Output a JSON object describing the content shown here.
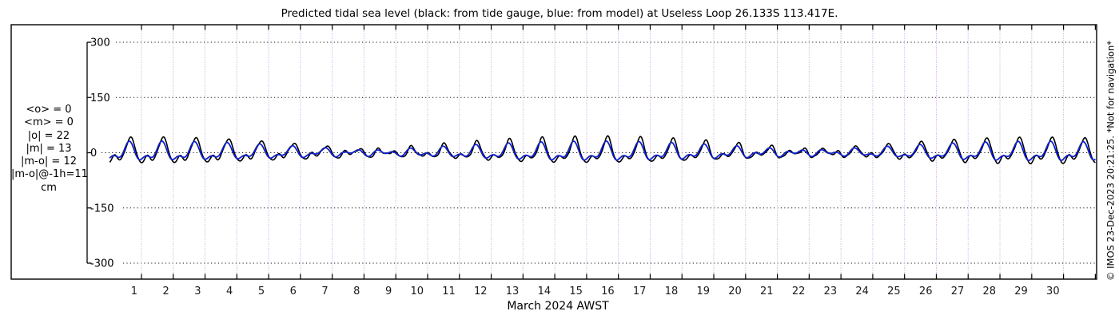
{
  "copyright": "© IMOS 23-Dec-2023 20:21:25. *Not for navigation*",
  "stats": {
    "lines": [
      "<o> = 0",
      "<m> = 0",
      "|o| = 22",
      "|m| = 13",
      "|m-o| = 12",
      "|m-o|@-1h=11",
      "cm"
    ]
  },
  "chart_data": {
    "type": "line",
    "title": "Predicted tidal sea level (black: from tide gauge, blue: from model) at Useless Loop 26.133S 113.417E.",
    "xlabel": "March 2024 AWST",
    "ylabel": "cm",
    "ylim": [
      -300,
      300
    ],
    "xlim_days": [
      0,
      31
    ],
    "grid": true,
    "y_ticks": [
      {
        "value": 300,
        "label": "300"
      },
      {
        "value": 150,
        "label": "150"
      },
      {
        "value": 0,
        "label": "0"
      },
      {
        "value": -150,
        "label": "-150"
      },
      {
        "value": -300,
        "label": "-300"
      }
    ],
    "x_tick_labels": [
      "1",
      "2",
      "3",
      "4",
      "5",
      "6",
      "7",
      "8",
      "9",
      "10",
      "11",
      "12",
      "13",
      "14",
      "15",
      "16",
      "17",
      "18",
      "19",
      "20",
      "21",
      "22",
      "23",
      "24",
      "25",
      "26",
      "27",
      "28",
      "29",
      "30"
    ],
    "colors": {
      "observed": "#000000",
      "model": "#1122cc",
      "h_grid": "#111111",
      "v_grid_pink": "#f0d0dc",
      "v_grid_blue": "#c8ccf0",
      "axis": "#000000"
    },
    "series": [
      {
        "name": "tide gauge (observed)",
        "color_key": "observed",
        "line_width": 1.6,
        "constituents": [
          {
            "period_h": 12.4206,
            "amp_cm": 12.0,
            "peak_h": 16
          },
          {
            "period_h": 12.0,
            "amp_cm": 4.0,
            "peak_h": 16
          },
          {
            "period_h": 23.9345,
            "amp_cm": 16.0,
            "peak_h": 16
          },
          {
            "period_h": 25.8193,
            "amp_cm": 11.0,
            "peak_h": 40
          },
          {
            "period_h": 6.21,
            "amp_cm": 2.2,
            "peak_h": 10
          },
          {
            "period_h": 8.28,
            "amp_cm": 1.5,
            "peak_h": 3
          }
        ]
      },
      {
        "name": "model (predicted)",
        "color_key": "model",
        "line_width": 1.8,
        "constituents": [
          {
            "period_h": 12.4206,
            "amp_cm": 8.5,
            "peak_h": 15
          },
          {
            "period_h": 12.0,
            "amp_cm": 3.0,
            "peak_h": 15
          },
          {
            "period_h": 23.9345,
            "amp_cm": 12.5,
            "peak_h": 15
          },
          {
            "period_h": 25.8193,
            "amp_cm": 8.0,
            "peak_h": 39
          }
        ]
      }
    ]
  }
}
